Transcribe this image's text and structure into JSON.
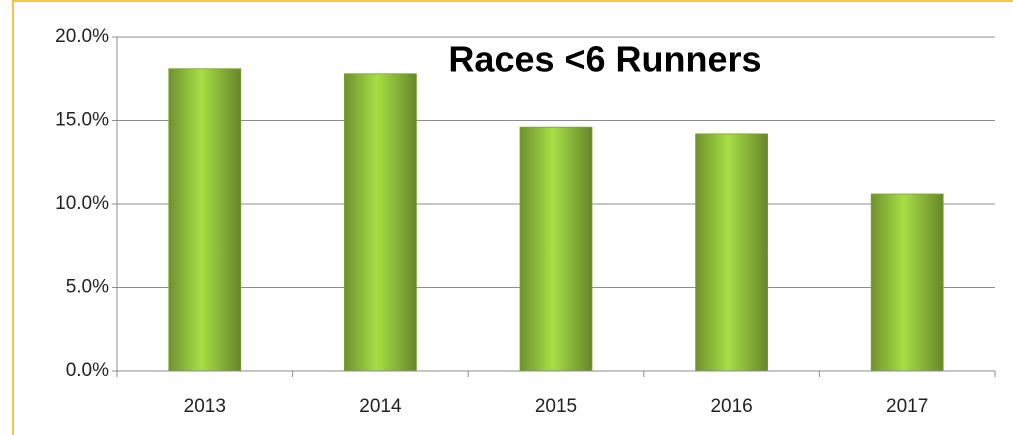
{
  "chart_data": {
    "type": "bar",
    "title": "Races <6 Runners",
    "categories": [
      "2013",
      "2014",
      "2015",
      "2016",
      "2017"
    ],
    "values": [
      18.1,
      17.8,
      14.6,
      14.2,
      10.6
    ],
    "color": "#92c13c",
    "ylim": [
      0,
      20
    ],
    "yticks": [
      {
        "value": 0,
        "label": "0.0%"
      },
      {
        "value": 5,
        "label": "5.0%"
      },
      {
        "value": 10,
        "label": "10.0%"
      },
      {
        "value": 15,
        "label": "15.0%"
      },
      {
        "value": 20,
        "label": "20.0%"
      }
    ],
    "grid": true
  }
}
